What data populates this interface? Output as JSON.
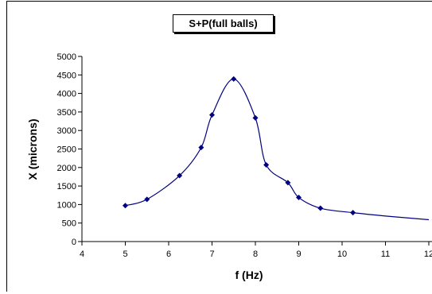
{
  "chart_data": {
    "type": "scatter",
    "title": "S+P(full balls)",
    "xlabel": "f (Hz)",
    "ylabel": "X (microns)",
    "xlim": [
      4,
      12
    ],
    "ylim": [
      0,
      5000
    ],
    "x_ticks": [
      4,
      5,
      6,
      7,
      8,
      9,
      10,
      11,
      12
    ],
    "y_ticks": [
      0,
      500,
      1000,
      1500,
      2000,
      2500,
      3000,
      3500,
      4000,
      4500,
      5000
    ],
    "grid": false,
    "legend": "none",
    "marker": "diamond",
    "line": "smooth",
    "color": "#000080",
    "points": [
      {
        "x": 5.0,
        "y": 970
      },
      {
        "x": 5.5,
        "y": 1140
      },
      {
        "x": 6.25,
        "y": 1780
      },
      {
        "x": 6.75,
        "y": 2540
      },
      {
        "x": 7.0,
        "y": 3420
      },
      {
        "x": 7.5,
        "y": 4390
      },
      {
        "x": 8.0,
        "y": 3340
      },
      {
        "x": 8.25,
        "y": 2070
      },
      {
        "x": 8.75,
        "y": 1590
      },
      {
        "x": 9.0,
        "y": 1190
      },
      {
        "x": 9.5,
        "y": 900
      },
      {
        "x": 10.25,
        "y": 780
      }
    ],
    "curve_extension": [
      {
        "x": 11.0,
        "y": 690
      },
      {
        "x": 12.0,
        "y": 590
      }
    ]
  }
}
